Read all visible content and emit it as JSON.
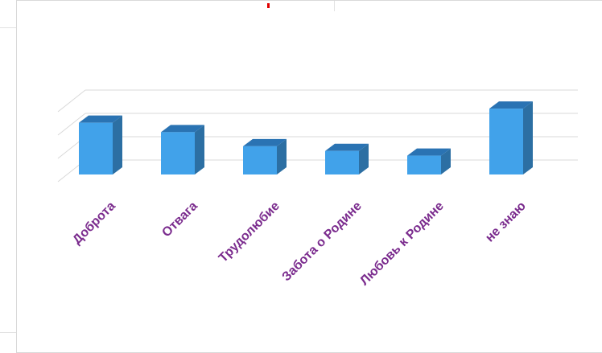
{
  "colors": {
    "bar_front": "#41a2ea",
    "bar_side": "#2c6fa3",
    "bar_top": "#2a73b3",
    "grid": "#d9d9d9",
    "label": "#7b2c8e",
    "accent_mark": "#e00000"
  },
  "chart_data": {
    "type": "bar",
    "three_d": true,
    "title": "",
    "xlabel": "",
    "ylabel": "",
    "categories": [
      "Доброта",
      "Отвага",
      "Трудолюбие",
      "Забота о Родине",
      "Любовь к Родине",
      "не знаю"
    ],
    "values": [
      22,
      18,
      12,
      10,
      8,
      28
    ],
    "ylim": [
      0,
      40
    ],
    "grid": true,
    "legend": "none",
    "value_axis_labels_shown": false
  }
}
